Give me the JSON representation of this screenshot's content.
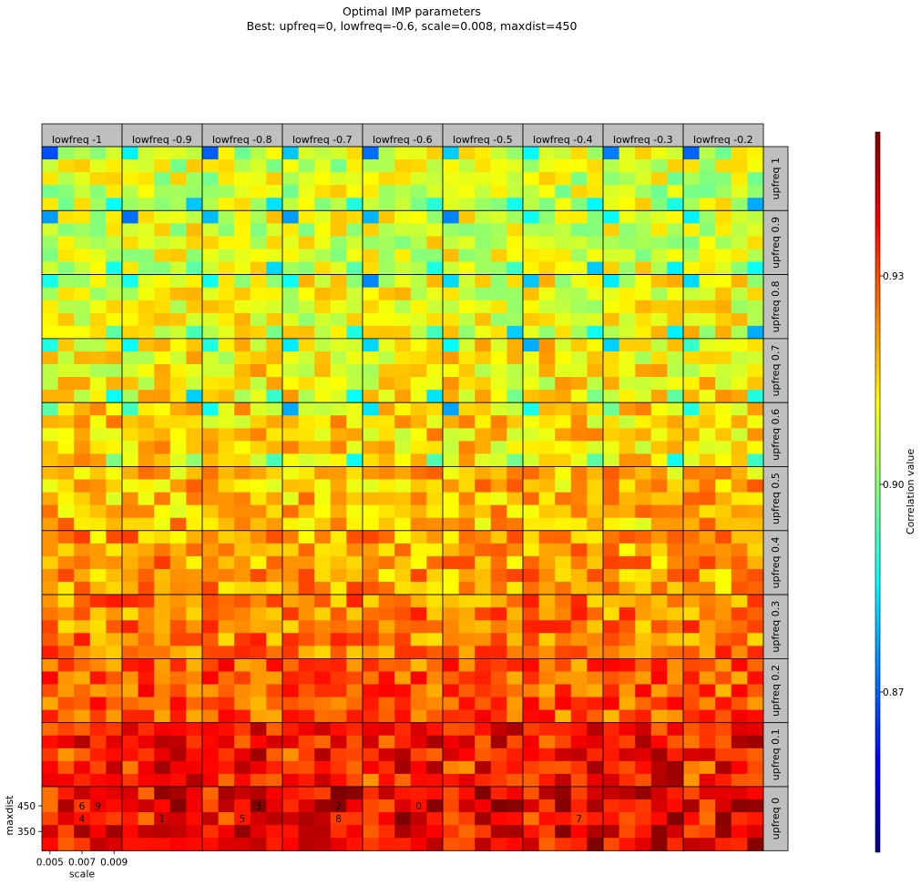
{
  "chart_data": {
    "type": "heatmap",
    "title": "Optimal IMP parameters",
    "subtitle": "Best: upfreq=0, lowfreq=-0.6, scale=0.008, maxdist=450",
    "col_facet_prefix": "lowfreq",
    "row_facet_prefix": "upfreq",
    "lowfreq": [
      -1,
      -0.9,
      -0.8,
      -0.7,
      -0.6,
      -0.5,
      -0.4,
      -0.3,
      -0.2
    ],
    "upfreq": [
      1,
      0.9,
      0.8,
      0.7,
      0.6,
      0.5,
      0.4,
      0.3,
      0.2,
      0.1,
      0
    ],
    "xlabel": "scale",
    "ylabel": "maxdist",
    "x_tick_labels": [
      "0.005",
      "0.007",
      "0.009"
    ],
    "y_tick_labels": [
      "450",
      "350"
    ],
    "colorbar": {
      "label": "Correlation value",
      "ticks": [
        "0.87",
        "0.90",
        "0.93"
      ],
      "colormap": "jet"
    },
    "cells_per_panel": [
      5,
      5
    ],
    "rank_annotations": [
      {
        "lowfreq": -1,
        "upfreq": 0,
        "col": 2,
        "row": 1,
        "label": "6"
      },
      {
        "lowfreq": -1,
        "upfreq": 0,
        "col": 3,
        "row": 1,
        "label": "9"
      },
      {
        "lowfreq": -1,
        "upfreq": 0,
        "col": 2,
        "row": 2,
        "label": "4"
      },
      {
        "lowfreq": -0.9,
        "upfreq": 0,
        "col": 2,
        "row": 2,
        "label": "1"
      },
      {
        "lowfreq": -0.8,
        "upfreq": 0,
        "col": 3,
        "row": 1,
        "label": "3"
      },
      {
        "lowfreq": -0.8,
        "upfreq": 0,
        "col": 2,
        "row": 2,
        "label": "5"
      },
      {
        "lowfreq": -0.7,
        "upfreq": 0,
        "col": 3,
        "row": 1,
        "label": "2"
      },
      {
        "lowfreq": -0.7,
        "upfreq": 0,
        "col": 3,
        "row": 2,
        "label": "8"
      },
      {
        "lowfreq": -0.6,
        "upfreq": 0,
        "col": 3,
        "row": 1,
        "label": "0"
      },
      {
        "lowfreq": -0.4,
        "upfreq": 0,
        "col": 3,
        "row": 2,
        "label": "7"
      }
    ]
  }
}
